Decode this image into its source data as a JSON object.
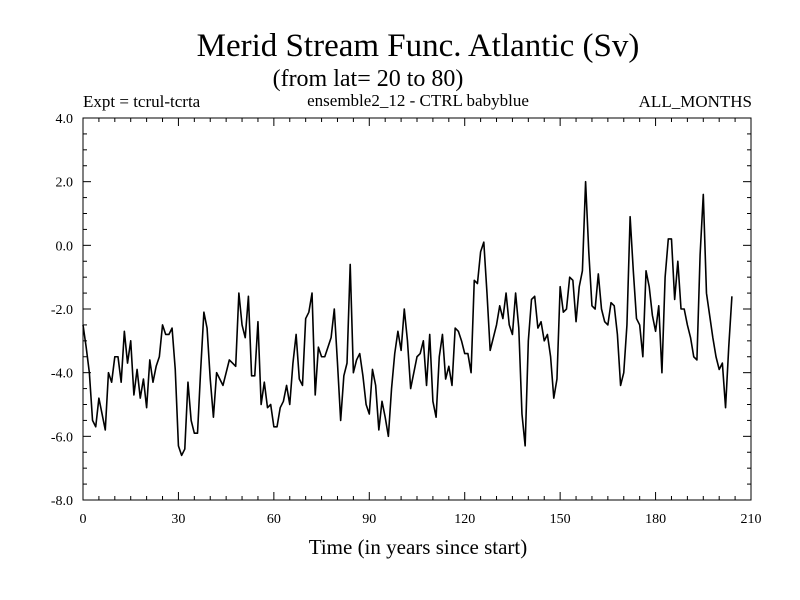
{
  "chart_data": {
    "type": "line",
    "title": "Merid Stream Func. Atlantic (Sv)",
    "subtitle": "(from lat= 20 to 80)",
    "header_left": "Expt = tcrul-tcrta",
    "header_center": "ensemble2_12 - CTRL babyblue",
    "header_right": "ALL_MONTHS",
    "xlabel": "Time (in years since start)",
    "ylabel": "",
    "xlim": [
      0,
      210
    ],
    "ylim": [
      -8.0,
      4.0
    ],
    "x_ticks": [
      0,
      30,
      60,
      90,
      120,
      150,
      180,
      210
    ],
    "x_tick_labels": [
      "0",
      "30",
      "60",
      "90",
      "120",
      "150",
      "180",
      "210"
    ],
    "y_ticks": [
      4.0,
      2.0,
      0.0,
      -2.0,
      -4.0,
      -6.0,
      -8.0
    ],
    "y_tick_labels": [
      "4.0",
      "2.0",
      "0.0",
      "-2.0",
      "-4.0",
      "-6.0",
      "-8.0"
    ],
    "grid": false,
    "series": [
      {
        "name": "ensemble2_12 - CTRL babyblue",
        "color": "#000000",
        "x_start": 0,
        "x_step": 1,
        "values": [
          -2.5,
          -3.2,
          -4.0,
          -5.5,
          -5.7,
          -4.8,
          -5.3,
          -5.8,
          -4.0,
          -4.3,
          -3.5,
          -3.5,
          -4.3,
          -2.7,
          -3.7,
          -3.0,
          -4.7,
          -3.9,
          -4.8,
          -4.2,
          -5.1,
          -3.6,
          -4.3,
          -3.8,
          -3.5,
          -2.5,
          -2.8,
          -2.8,
          -2.6,
          -3.9,
          -6.3,
          -6.6,
          -6.4,
          -4.3,
          -5.5,
          -5.9,
          -5.9,
          -3.9,
          -2.1,
          -2.6,
          -4.2,
          -5.4,
          -4.0,
          -4.2,
          -4.4,
          -4.0,
          -3.6,
          -3.7,
          -3.8,
          -1.5,
          -2.5,
          -2.9,
          -1.6,
          -4.1,
          -4.1,
          -2.4,
          -5.0,
          -4.3,
          -5.1,
          -5.0,
          -5.7,
          -5.7,
          -5.1,
          -4.9,
          -4.4,
          -5.0,
          -3.7,
          -2.8,
          -4.2,
          -4.4,
          -2.3,
          -2.1,
          -1.5,
          -4.7,
          -3.2,
          -3.5,
          -3.5,
          -3.2,
          -2.9,
          -2.0,
          -3.7,
          -5.5,
          -4.1,
          -3.7,
          -0.6,
          -4.0,
          -3.6,
          -3.4,
          -4.1,
          -5.0,
          -5.3,
          -3.9,
          -4.4,
          -5.8,
          -4.9,
          -5.4,
          -6.0,
          -4.5,
          -3.4,
          -2.7,
          -3.3,
          -2.0,
          -3.0,
          -4.5,
          -4.0,
          -3.5,
          -3.4,
          -3.0,
          -4.4,
          -2.8,
          -4.9,
          -5.4,
          -3.5,
          -2.8,
          -4.2,
          -3.8,
          -4.4,
          -2.6,
          -2.7,
          -3.0,
          -3.4,
          -3.4,
          -4.0,
          -1.1,
          -1.2,
          -0.2,
          0.1,
          -1.5,
          -3.3,
          -2.9,
          -2.5,
          -1.9,
          -2.3,
          -1.5,
          -2.5,
          -2.8,
          -1.5,
          -2.6,
          -5.3,
          -6.3,
          -3.0,
          -1.7,
          -1.6,
          -2.6,
          -2.4,
          -3.0,
          -2.8,
          -3.5,
          -4.8,
          -4.2,
          -1.3,
          -2.1,
          -2.0,
          -1.0,
          -1.1,
          -2.4,
          -1.3,
          -0.8,
          2.0,
          -0.2,
          -1.9,
          -2.0,
          -0.9,
          -2.0,
          -2.4,
          -2.5,
          -1.8,
          -1.9,
          -2.8,
          -4.4,
          -4.0,
          -2.5,
          0.9,
          -0.8,
          -2.3,
          -2.5,
          -3.5,
          -0.8,
          -1.3,
          -2.2,
          -2.7,
          -1.9,
          -4.0,
          -1.0,
          0.2,
          0.2,
          -1.7,
          -0.5,
          -2.0,
          -2.0,
          -2.5,
          -2.9,
          -3.5,
          -3.6,
          -0.3,
          1.6,
          -1.5,
          -2.2,
          -2.9,
          -3.5,
          -3.9,
          -3.7,
          -5.1,
          -3.2,
          -1.6
        ]
      }
    ]
  }
}
